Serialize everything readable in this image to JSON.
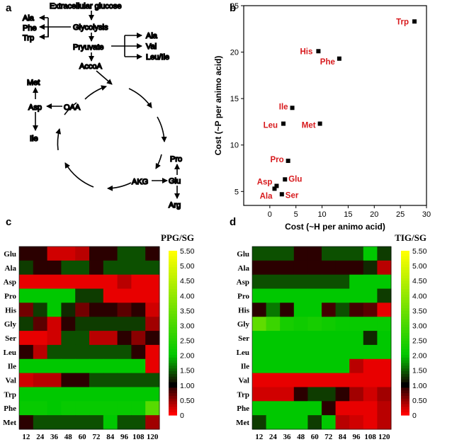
{
  "panels": {
    "a": "a",
    "b": "b",
    "c": "c",
    "d": "d"
  },
  "pathway": {
    "glucose": "Extracellular glucose",
    "glycolysis": "Glycolysis",
    "pyruvate": "Pryuvate",
    "accoa": "AccoA",
    "oaa": "OAA",
    "akg": "AKG",
    "left_top": [
      "Ala",
      "Phe",
      "Trp"
    ],
    "pyruvate_products": [
      "Ala",
      "Val",
      "Leu/Ile"
    ],
    "oaa_products": [
      "Met",
      "Asp",
      "Ile"
    ],
    "akg_products": [
      "Pro",
      "Glu",
      "Arg"
    ]
  },
  "chart_data": [
    {
      "type": "scatter",
      "title": "",
      "xlabel": "Cost (~H per animo acid)",
      "ylabel": "Cost (~P per animo acid)",
      "xlim": [
        -5,
        30
      ],
      "ylim": [
        3.5,
        25
      ],
      "xticks": [
        0,
        5,
        10,
        15,
        20,
        25,
        30
      ],
      "yticks": [
        5,
        10,
        15,
        20,
        25
      ],
      "points": [
        {
          "label": "Trp",
          "x": 27.7,
          "y": 23.3
        },
        {
          "label": "His",
          "x": 9.3,
          "y": 20.1
        },
        {
          "label": "Phe",
          "x": 13.3,
          "y": 19.3
        },
        {
          "label": "Ile",
          "x": 4.3,
          "y": 14.0
        },
        {
          "label": "Leu",
          "x": 2.6,
          "y": 12.3
        },
        {
          "label": "Met",
          "x": 9.6,
          "y": 12.3
        },
        {
          "label": "Pro",
          "x": 3.5,
          "y": 8.3
        },
        {
          "label": "Asp",
          "x": 1.3,
          "y": 5.6
        },
        {
          "label": "Glu",
          "x": 2.9,
          "y": 6.3
        },
        {
          "label": "Ala",
          "x": 0.9,
          "y": 5.3
        },
        {
          "label": "Ser",
          "x": 2.3,
          "y": 4.7
        }
      ]
    },
    {
      "type": "heatmap",
      "title": "PPG/SG",
      "columns": [
        "12",
        "24",
        "36",
        "48",
        "60",
        "72",
        "84",
        "96",
        "108",
        "120"
      ],
      "rows": [
        "Glu",
        "Ala",
        "Asp",
        "Pro",
        "His",
        "Gly",
        "Ser",
        "Leu",
        "Ile",
        "Val",
        "Trp",
        "Phe",
        "Met"
      ],
      "values": [
        [
          0.9,
          0.9,
          0.2,
          0.2,
          0.3,
          0.9,
          0.9,
          1.4,
          1.4,
          0.9
        ],
        [
          1.3,
          0.9,
          0.9,
          1.4,
          1.4,
          0.9,
          1.4,
          1.4,
          1.4,
          1.4
        ],
        [
          0.1,
          0.1,
          0.1,
          0.1,
          0.1,
          0.1,
          0.1,
          0.3,
          0.1,
          0.1
        ],
        [
          2.0,
          2.0,
          2.0,
          2.0,
          1.3,
          1.3,
          0.1,
          0.1,
          0.1,
          0.1
        ],
        [
          0.6,
          1.3,
          2.0,
          1.2,
          0.6,
          0.9,
          0.9,
          0.7,
          0.9,
          0.2
        ],
        [
          1.3,
          0.7,
          0.2,
          0.9,
          1.3,
          1.3,
          1.3,
          1.3,
          1.3,
          0.4
        ],
        [
          0.1,
          0.1,
          0.2,
          1.4,
          1.4,
          0.3,
          0.3,
          0.9,
          0.5,
          0.9
        ],
        [
          0.9,
          0.3,
          1.4,
          1.4,
          1.4,
          1.4,
          1.4,
          1.4,
          0.9,
          0.1
        ],
        [
          2.0,
          2.0,
          2.0,
          2.0,
          2.0,
          2.0,
          2.0,
          2.0,
          2.0,
          0.1
        ],
        [
          0.2,
          0.3,
          0.3,
          0.9,
          0.9,
          1.4,
          1.4,
          1.4,
          1.4,
          1.4
        ],
        [
          2.0,
          2.0,
          2.0,
          2.0,
          2.0,
          2.0,
          2.0,
          2.0,
          2.0,
          2.0
        ],
        [
          2.1,
          2.1,
          2.0,
          2.1,
          2.1,
          2.1,
          2.1,
          2.1,
          2.1,
          3.2
        ],
        [
          0.9,
          1.4,
          1.4,
          1.4,
          1.4,
          1.4,
          2.0,
          1.4,
          1.4,
          0.4
        ]
      ],
      "colorbar": [
        "5.50",
        "5.00",
        "4.50",
        "4.00",
        "3.50",
        "3.00",
        "2.50",
        "2.00",
        "1.50",
        "1.00",
        "0.50",
        "0"
      ]
    },
    {
      "type": "heatmap",
      "title": "TIG/SG",
      "columns": [
        "12",
        "24",
        "36",
        "48",
        "60",
        "72",
        "84",
        "96",
        "108",
        "120"
      ],
      "rows": [
        "Glu",
        "Ala",
        "Asp",
        "Pro",
        "His",
        "Gly",
        "Ser",
        "Leu",
        "Ile",
        "Val",
        "Trp",
        "Phe",
        "Met"
      ],
      "values": [
        [
          1.4,
          1.4,
          1.4,
          0.9,
          0.9,
          1.4,
          1.4,
          1.4,
          2.0,
          1.3
        ],
        [
          0.9,
          0.9,
          0.9,
          0.9,
          0.9,
          0.9,
          0.9,
          0.9,
          1.2,
          0.3
        ],
        [
          1.4,
          1.4,
          1.4,
          1.4,
          1.4,
          1.4,
          1.4,
          2.0,
          2.0,
          2.0
        ],
        [
          2.0,
          2.0,
          2.0,
          2.0,
          2.0,
          2.0,
          2.0,
          2.0,
          2.0,
          1.3
        ],
        [
          0.9,
          1.6,
          0.9,
          2.0,
          2.0,
          0.8,
          1.4,
          0.8,
          0.7,
          0.1
        ],
        [
          3.3,
          2.8,
          2.3,
          2.2,
          2.3,
          2.2,
          2.1,
          2.1,
          2.1,
          2.1
        ],
        [
          2.0,
          2.0,
          2.0,
          2.0,
          2.0,
          2.0,
          2.0,
          2.0,
          1.2,
          2.0
        ],
        [
          2.0,
          2.0,
          2.0,
          2.0,
          2.0,
          2.0,
          2.0,
          2.0,
          2.0,
          2.0
        ],
        [
          2.0,
          2.0,
          2.0,
          2.0,
          2.0,
          2.0,
          2.0,
          0.3,
          0.1,
          0.1
        ],
        [
          0.1,
          0.1,
          0.1,
          0.1,
          0.1,
          0.1,
          0.1,
          0.1,
          0.1,
          0.1
        ],
        [
          0.2,
          0.2,
          0.2,
          0.9,
          1.3,
          1.3,
          0.9,
          0.4,
          0.2,
          0.4
        ],
        [
          2.0,
          2.0,
          2.0,
          2.0,
          2.0,
          0.9,
          0.1,
          0.1,
          0.1,
          0.3
        ],
        [
          1.3,
          2.0,
          2.0,
          2.0,
          1.3,
          2.0,
          0.3,
          0.2,
          0.1,
          0.3
        ]
      ],
      "colorbar": [
        "5.50",
        "5.00",
        "4.50",
        "4.00",
        "3.50",
        "3.00",
        "2.50",
        "2.00",
        "1.50",
        "1.00",
        "0.50",
        "0"
      ]
    }
  ]
}
